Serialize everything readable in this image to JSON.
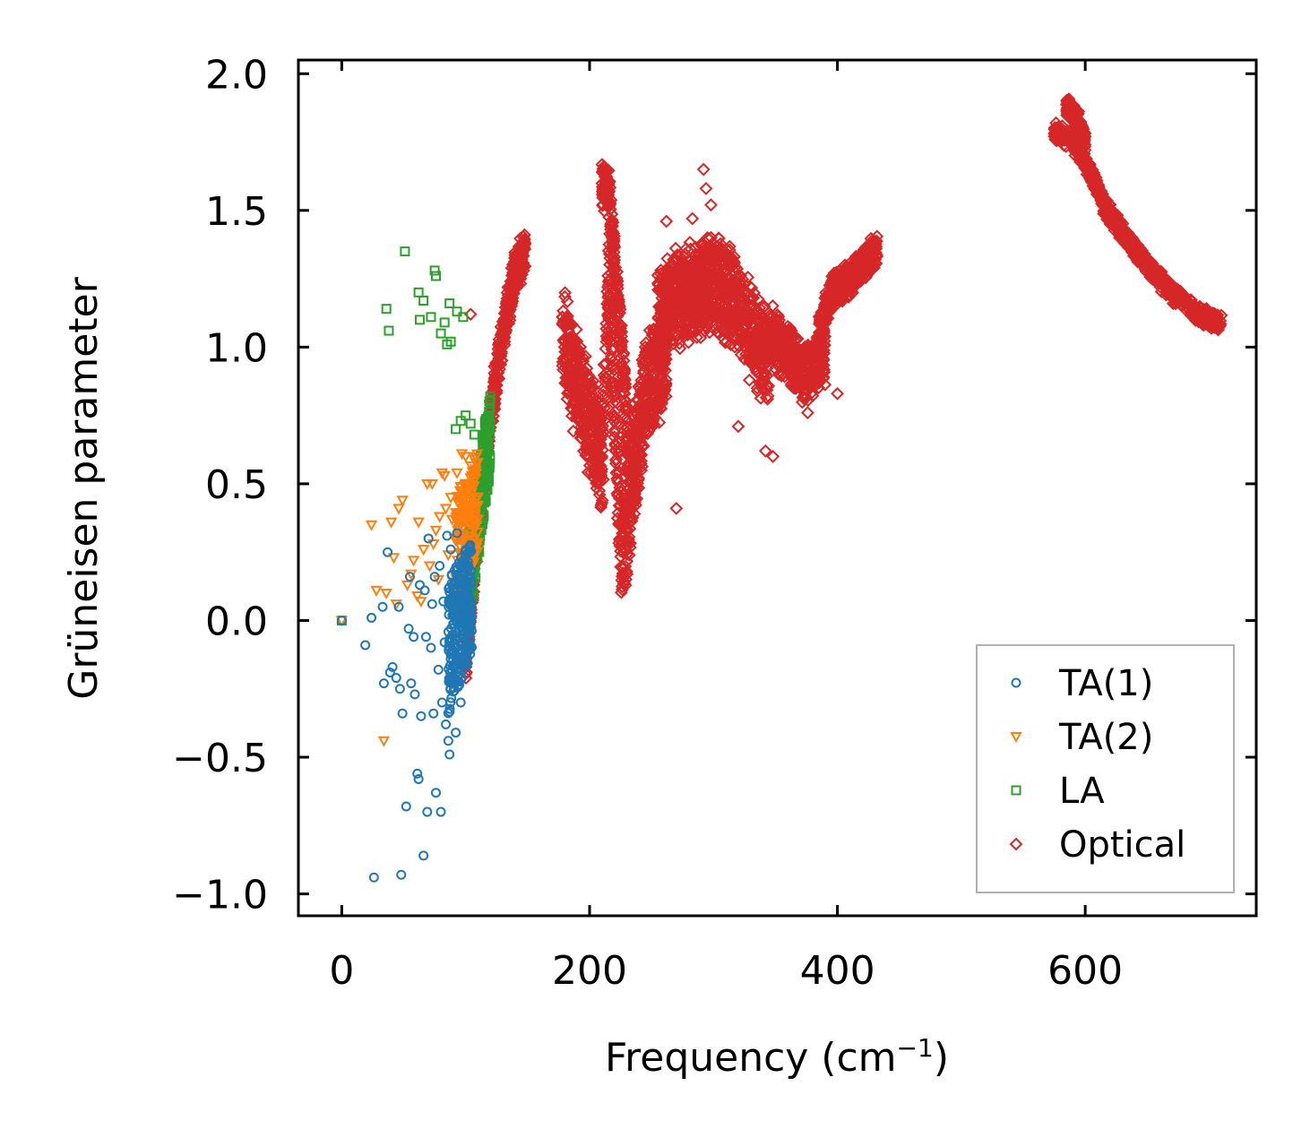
{
  "chart_data": {
    "type": "scatter",
    "title": "",
    "xlabel": "Frequency (cm",
    "xlabel_sup": "−1",
    "xlabel_close": ")",
    "ylabel": "Grüneisen parameter",
    "xlim": [
      -35,
      738
    ],
    "ylim": [
      -1.08,
      2.05
    ],
    "xticks": [
      0,
      200,
      400,
      600
    ],
    "xtick_labels": [
      "0",
      "200",
      "400",
      "600"
    ],
    "yticks": [
      -1.0,
      -0.5,
      0.0,
      0.5,
      1.0,
      1.5,
      2.0
    ],
    "ytick_labels": [
      "−1.0",
      "−0.5",
      "0.0",
      "0.5",
      "1.0",
      "1.5",
      "2.0"
    ],
    "legend_position": "lower-right",
    "series": [
      {
        "name": "TA(1)",
        "marker": "circle",
        "color": "#1f77b4",
        "points": [
          [
            0,
            0.0
          ],
          [
            19,
            -0.09
          ],
          [
            24,
            0.01
          ],
          [
            26,
            -0.94
          ],
          [
            33,
            0.05
          ],
          [
            34,
            -0.23
          ],
          [
            37,
            0.25
          ],
          [
            39,
            -0.19
          ],
          [
            41,
            -0.17
          ],
          [
            44,
            -0.21
          ],
          [
            46,
            0.05
          ],
          [
            47,
            -0.25
          ],
          [
            48,
            -0.93
          ],
          [
            49,
            -0.34
          ],
          [
            52,
            -0.68
          ],
          [
            54,
            -0.03
          ],
          [
            55,
            0.16
          ],
          [
            56,
            -0.23
          ],
          [
            58,
            -0.06
          ],
          [
            59,
            -0.27
          ],
          [
            61,
            -0.56
          ],
          [
            62,
            -0.58
          ],
          [
            63,
            0.13
          ],
          [
            64,
            -0.35
          ],
          [
            66,
            -0.86
          ],
          [
            67,
            0.11
          ],
          [
            68,
            -0.06
          ],
          [
            69,
            -0.7
          ],
          [
            70,
            0.3
          ],
          [
            72,
            -0.1
          ],
          [
            73,
            0.06
          ],
          [
            74,
            -0.34
          ],
          [
            75,
            0.16
          ],
          [
            76,
            -0.63
          ],
          [
            78,
            -0.18
          ],
          [
            79,
            0.2
          ],
          [
            80,
            -0.7
          ],
          [
            81,
            -0.3
          ],
          [
            82,
            0.07
          ],
          [
            83,
            -0.08
          ],
          [
            84,
            -0.38
          ],
          [
            85,
            0.31
          ],
          [
            86,
            -0.44
          ],
          [
            87,
            -0.49
          ],
          [
            88,
            0.26
          ],
          [
            89,
            -0.11
          ],
          [
            90,
            -0.26
          ],
          [
            91,
            0.12
          ],
          [
            92,
            -0.41
          ],
          [
            93,
            0.32
          ],
          [
            94,
            -0.15
          ],
          [
            95,
            0.05
          ],
          [
            96,
            -0.3
          ],
          [
            97,
            0.21
          ],
          [
            98,
            -0.05
          ],
          [
            99,
            0.18
          ],
          [
            100,
            -0.13
          ],
          [
            101,
            0.1
          ],
          [
            102,
            -0.03
          ],
          [
            103,
            0.08
          ]
        ],
        "dense_band": {
          "x_start": 86,
          "x_end": 105,
          "y_bottom_start": -0.35,
          "y_bottom_end": -0.12,
          "y_top_start": 0.15,
          "y_top_end": 0.3,
          "count": 260
        }
      },
      {
        "name": "TA(2)",
        "marker": "triangle-down",
        "color": "#ff7f0e",
        "points": [
          [
            0,
            0.0
          ],
          [
            24,
            0.35
          ],
          [
            28,
            0.11
          ],
          [
            34,
            -0.44
          ],
          [
            36,
            0.1
          ],
          [
            40,
            0.36
          ],
          [
            42,
            0.23
          ],
          [
            44,
            0.06
          ],
          [
            46,
            0.41
          ],
          [
            49,
            0.44
          ],
          [
            53,
            0.13
          ],
          [
            56,
            0.17
          ],
          [
            58,
            0.22
          ],
          [
            61,
            0.09
          ],
          [
            62,
            0.36
          ],
          [
            64,
            0.07
          ],
          [
            66,
            0.26
          ],
          [
            69,
            0.5
          ],
          [
            71,
            0.2
          ],
          [
            73,
            0.5
          ],
          [
            74,
            0.28
          ],
          [
            76,
            0.33
          ],
          [
            78,
            0.15
          ],
          [
            79,
            0.38
          ],
          [
            81,
            0.54
          ],
          [
            83,
            0.53
          ],
          [
            84,
            0.41
          ],
          [
            86,
            0.24
          ],
          [
            88,
            0.45
          ],
          [
            89,
            0.37
          ],
          [
            91,
            0.3
          ],
          [
            93,
            0.54
          ],
          [
            94,
            0.43
          ],
          [
            96,
            0.49
          ],
          [
            97,
            0.61
          ],
          [
            98,
            0.39
          ],
          [
            99,
            0.28
          ],
          [
            100,
            0.6
          ],
          [
            101,
            0.47
          ],
          [
            102,
            0.36
          ]
        ],
        "dense_band": {
          "x_start": 92,
          "x_end": 110,
          "y_bottom_start": 0.05,
          "y_bottom_end": 0.25,
          "y_top_start": 0.45,
          "y_top_end": 0.62,
          "count": 180
        }
      },
      {
        "name": "LA",
        "marker": "square",
        "color": "#2ca02c",
        "points": [
          [
            0,
            0.0
          ],
          [
            36,
            1.14
          ],
          [
            38,
            1.06
          ],
          [
            51,
            1.35
          ],
          [
            62,
            1.2
          ],
          [
            63,
            1.1
          ],
          [
            66,
            1.17
          ],
          [
            72,
            1.11
          ],
          [
            75,
            1.28
          ],
          [
            76,
            1.26
          ],
          [
            80,
            1.05
          ],
          [
            83,
            1.09
          ],
          [
            85,
            1.01
          ],
          [
            87,
            1.16
          ],
          [
            88,
            1.02
          ],
          [
            93,
            1.13
          ],
          [
            98,
            1.11
          ],
          [
            92,
            0.7
          ],
          [
            96,
            0.73
          ],
          [
            100,
            0.75
          ],
          [
            104,
            0.72
          ],
          [
            107,
            0.68
          ]
        ],
        "dense_band": {
          "x_start": 102,
          "x_end": 120,
          "y_bottom_start": -0.05,
          "y_bottom_end": 0.55,
          "y_top_start": 0.35,
          "y_top_end": 0.85,
          "count": 200
        }
      },
      {
        "name": "Optical",
        "marker": "diamond",
        "color": "#d62728",
        "points": [
          [
            104,
            1.12
          ],
          [
            178,
            1.11
          ],
          [
            262,
            1.46
          ],
          [
            270,
            0.41
          ],
          [
            283,
            1.47
          ],
          [
            292,
            1.65
          ],
          [
            294,
            1.58
          ],
          [
            298,
            1.52
          ],
          [
            320,
            0.71
          ],
          [
            342,
            0.62
          ],
          [
            348,
            0.6
          ],
          [
            376,
            0.76
          ],
          [
            393,
            1.17
          ],
          [
            400,
            0.83
          ]
        ],
        "clusters": [
          {
            "x": [
              100,
              148
            ],
            "center": [
              [
                100,
                -0.15
              ],
              [
                110,
                0.35
              ],
              [
                120,
                0.75
              ],
              [
                130,
                1.05
              ],
              [
                140,
                1.28
              ],
              [
                148,
                1.35
              ]
            ],
            "half_width": 0.09,
            "count": 520
          },
          {
            "x": [
              178,
              262
            ],
            "center": [
              [
                178,
                1.05
              ],
              [
                190,
                0.85
              ],
              [
                200,
                0.72
              ],
              [
                210,
                0.6
              ],
              [
                216,
                1.25
              ],
              [
                220,
                0.8
              ],
              [
                226,
                0.25
              ],
              [
                235,
                0.5
              ],
              [
                245,
                0.85
              ],
              [
                262,
                0.95
              ]
            ],
            "half_width": 0.22,
            "count": 900
          },
          {
            "x": [
              210,
              232
            ],
            "center": [
              [
                210,
                1.6
              ],
              [
                216,
                1.55
              ],
              [
                222,
                1.2
              ],
              [
                228,
                0.9
              ],
              [
                232,
                0.55
              ]
            ],
            "half_width": 0.1,
            "count": 220
          },
          {
            "x": [
              255,
              345
            ],
            "center": [
              [
                255,
                1.12
              ],
              [
                270,
                1.18
              ],
              [
                285,
                1.2
              ],
              [
                300,
                1.25
              ],
              [
                315,
                1.18
              ],
              [
                330,
                1.05
              ],
              [
                345,
                0.95
              ]
            ],
            "half_width": 0.2,
            "count": 900
          },
          {
            "x": [
              345,
              390
            ],
            "center": [
              [
                345,
                1.05
              ],
              [
                355,
                1.0
              ],
              [
                365,
                0.95
              ],
              [
                375,
                0.9
              ],
              [
                390,
                0.97
              ]
            ],
            "half_width": 0.12,
            "count": 380
          },
          {
            "x": [
              385,
              432
            ],
            "center": [
              [
                385,
                1.05
              ],
              [
                395,
                1.2
              ],
              [
                410,
                1.25
              ],
              [
                420,
                1.3
              ],
              [
                432,
                1.36
              ]
            ],
            "half_width": 0.07,
            "count": 380
          },
          {
            "x": [
              575,
              710
            ],
            "center": [
              [
                575,
                1.79
              ],
              [
                588,
                1.76
              ],
              [
                600,
                1.68
              ],
              [
                615,
                1.52
              ],
              [
                630,
                1.42
              ],
              [
                650,
                1.3
              ],
              [
                670,
                1.2
              ],
              [
                690,
                1.13
              ],
              [
                710,
                1.08
              ]
            ],
            "half_width": 0.04,
            "count": 700
          },
          {
            "x": [
              585,
              600
            ],
            "center": [
              [
                585,
                1.88
              ],
              [
                590,
                1.86
              ],
              [
                595,
                1.82
              ],
              [
                600,
                1.75
              ]
            ],
            "half_width": 0.04,
            "count": 120
          }
        ]
      }
    ]
  }
}
